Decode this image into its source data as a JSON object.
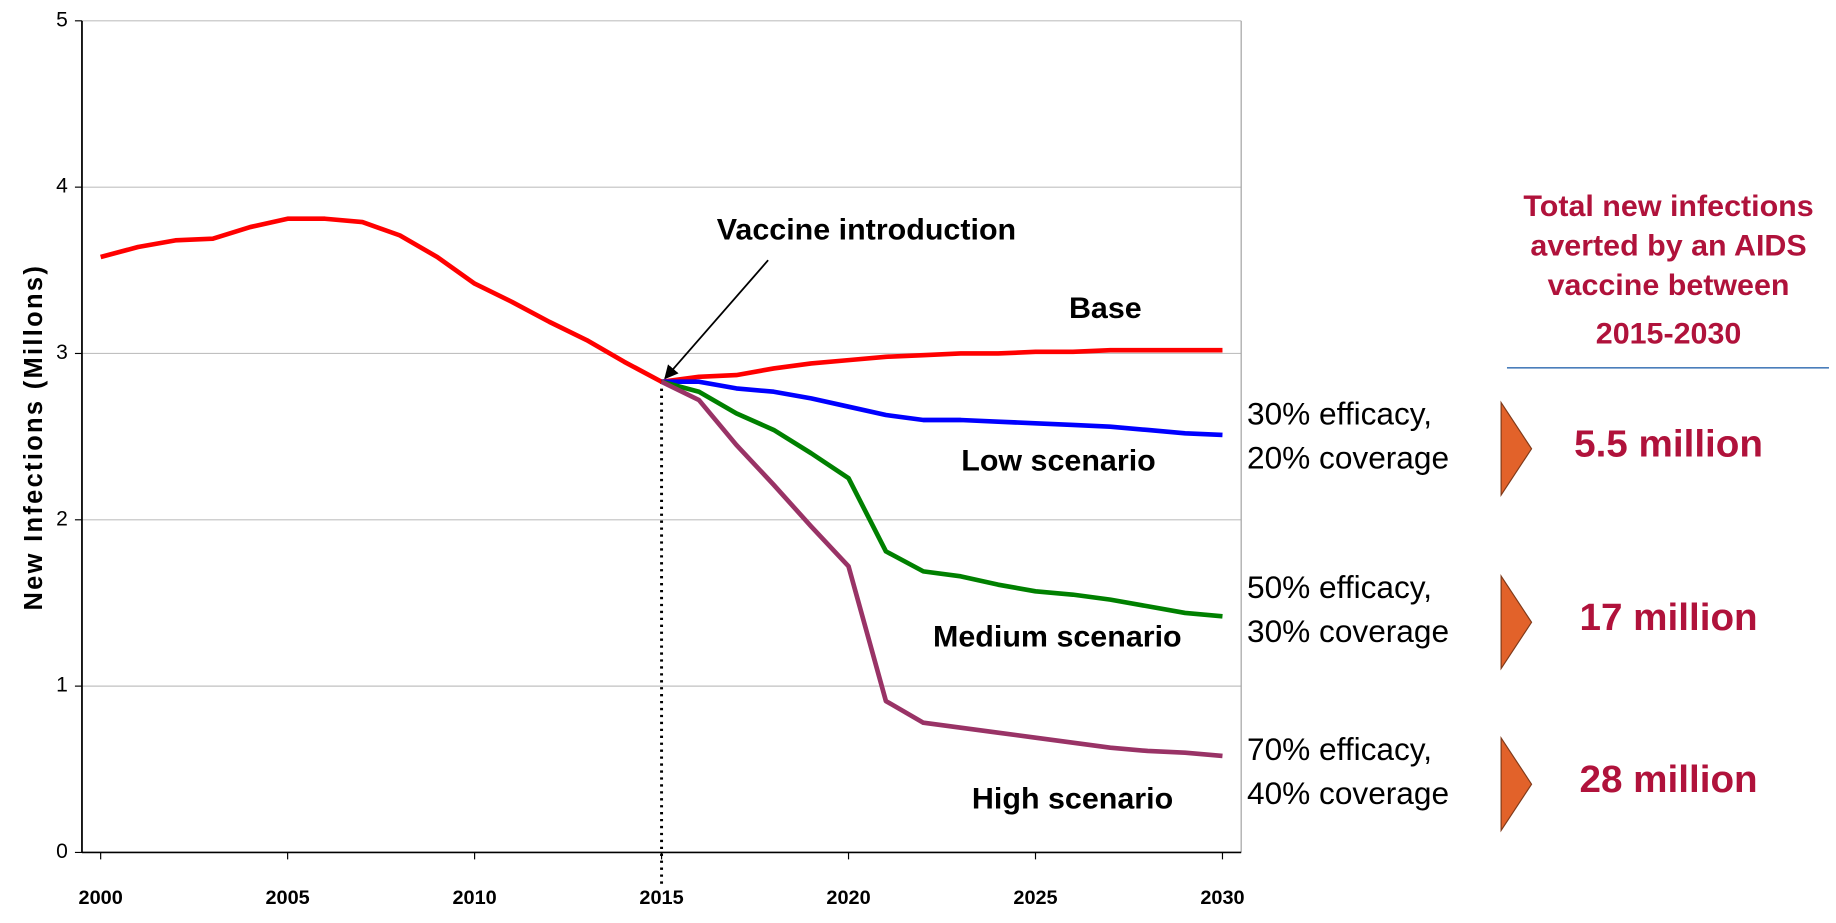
{
  "chart_data": {
    "type": "line",
    "ylabel": "New Infections (Millons)",
    "x": [
      2000,
      2001,
      2002,
      2003,
      2004,
      2005,
      2006,
      2007,
      2008,
      2009,
      2010,
      2011,
      2012,
      2013,
      2014,
      2015,
      2016,
      2017,
      2018,
      2019,
      2020,
      2021,
      2022,
      2023,
      2024,
      2025,
      2026,
      2027,
      2028,
      2029,
      2030
    ],
    "xlim": [
      1999.5,
      2030.5
    ],
    "xticks": [
      2000,
      2005,
      2010,
      2015,
      2020,
      2025,
      2030
    ],
    "ylim": [
      0,
      5
    ],
    "yticks": [
      0,
      1,
      2,
      3,
      4,
      5
    ],
    "grid": true,
    "series": [
      {
        "name": "Base",
        "color": "#ff0000",
        "values": [
          3.58,
          3.64,
          3.68,
          3.69,
          3.76,
          3.81,
          3.81,
          3.79,
          3.71,
          3.58,
          3.42,
          3.31,
          3.19,
          3.08,
          2.95,
          2.83,
          2.86,
          2.87,
          2.91,
          2.94,
          2.96,
          2.98,
          2.99,
          3.0,
          3.0,
          3.01,
          3.01,
          3.02,
          3.02,
          3.02,
          3.02
        ]
      },
      {
        "name": "Low scenario",
        "color": "#0000ff",
        "values": [
          null,
          null,
          null,
          null,
          null,
          null,
          null,
          null,
          null,
          null,
          null,
          null,
          null,
          null,
          null,
          2.83,
          2.83,
          2.79,
          2.77,
          2.73,
          2.68,
          2.63,
          2.6,
          2.6,
          2.59,
          2.58,
          2.57,
          2.56,
          2.54,
          2.52,
          2.51
        ]
      },
      {
        "name": "Medium scenario",
        "color": "#008000",
        "values": [
          null,
          null,
          null,
          null,
          null,
          null,
          null,
          null,
          null,
          null,
          null,
          null,
          null,
          null,
          null,
          2.83,
          2.77,
          2.64,
          2.54,
          2.4,
          2.25,
          1.81,
          1.69,
          1.66,
          1.61,
          1.57,
          1.55,
          1.52,
          1.48,
          1.44,
          1.42
        ]
      },
      {
        "name": "High scenario",
        "color": "#993366",
        "values": [
          null,
          null,
          null,
          null,
          null,
          null,
          null,
          null,
          null,
          null,
          null,
          null,
          null,
          null,
          null,
          2.83,
          2.72,
          2.45,
          2.21,
          1.96,
          1.72,
          0.91,
          0.78,
          0.75,
          0.72,
          0.69,
          0.66,
          0.63,
          0.61,
          0.6,
          0.58
        ]
      }
    ],
    "annotations": [
      {
        "text": "Vaccine introduction",
        "x": 2015,
        "y": 2.83
      }
    ]
  },
  "side_panel": {
    "title": [
      "Total new infections",
      "averted by an AIDS",
      "vaccine between",
      "2015-2030"
    ],
    "rows": [
      {
        "label": [
          "30% efficacy,",
          "20% coverage"
        ],
        "value": "5.5 million"
      },
      {
        "label": [
          "50% efficacy,",
          "30% coverage"
        ],
        "value": "17 million"
      },
      {
        "label": [
          "70% efficacy,",
          "40% coverage"
        ],
        "value": "28 million"
      }
    ]
  }
}
